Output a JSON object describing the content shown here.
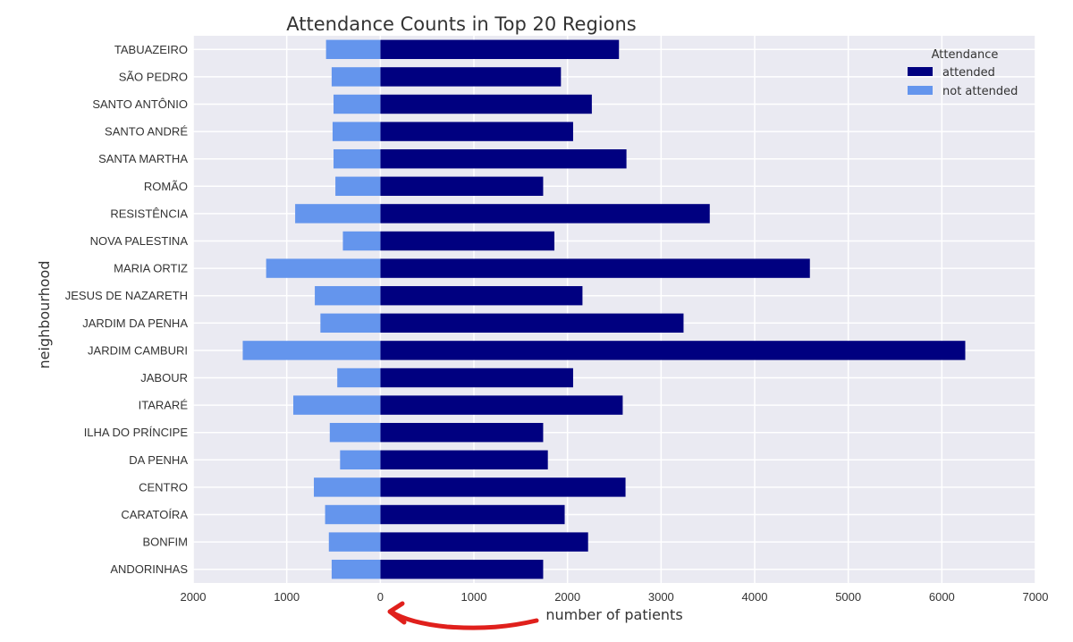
{
  "chart_data": {
    "type": "bar",
    "orientation": "horizontal",
    "title": "Attendance Counts in Top 20 Regions",
    "xlabel": "number of patients",
    "ylabel": "neighbourhood",
    "xlim": [
      -2000,
      7000
    ],
    "xticks": [
      -2000,
      -1000,
      0,
      1000,
      2000,
      3000,
      4000,
      5000,
      6000,
      7000
    ],
    "xtick_labels": [
      "2000",
      "1000",
      "0",
      "1000",
      "2000",
      "3000",
      "4000",
      "5000",
      "6000",
      "7000"
    ],
    "grid": true,
    "legend": {
      "title": "Attendance",
      "placement": "top-right"
    },
    "categories": [
      "TABUAZEIRO",
      "SÃO PEDRO",
      "SANTO ANTÔNIO",
      "SANTO ANDRÉ",
      "SANTA MARTHA",
      "ROMÃO",
      "RESISTÊNCIA",
      "NOVA PALESTINA",
      "MARIA ORTIZ",
      "JESUS DE NAZARETH",
      "JARDIM DA PENHA",
      "JARDIM CAMBURI",
      "JABOUR",
      "ITARARÉ",
      "ILHA DO PRÍNCIPE",
      "DA PENHA",
      "CENTRO",
      "CARATOÍRA",
      "BONFIM",
      "ANDORINHAS"
    ],
    "series": [
      {
        "name": "attended",
        "color": "#000080",
        "values": [
          2550,
          1930,
          2260,
          2060,
          2630,
          1740,
          3520,
          1860,
          4590,
          2160,
          3240,
          6250,
          2060,
          2590,
          1740,
          1790,
          2620,
          1970,
          2220,
          1740
        ]
      },
      {
        "name": "not attended",
        "color": "#6495ED",
        "values": [
          -580,
          -520,
          -500,
          -510,
          -500,
          -480,
          -910,
          -400,
          -1220,
          -700,
          -640,
          -1470,
          -460,
          -930,
          -540,
          -430,
          -710,
          -590,
          -550,
          -520
        ]
      }
    ]
  },
  "annotations": {
    "arrow_color": "#e0201c"
  }
}
